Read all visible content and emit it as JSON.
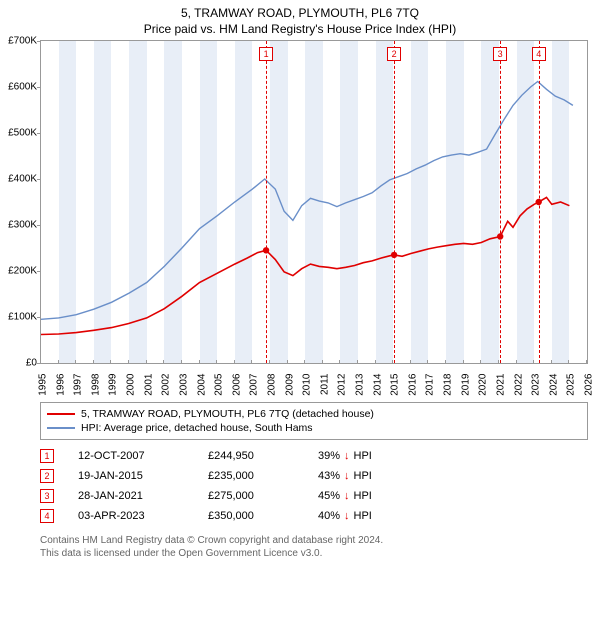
{
  "title": "5, TRAMWAY ROAD, PLYMOUTH, PL6 7TQ",
  "subtitle": "Price paid vs. HM Land Registry's House Price Index (HPI)",
  "chart": {
    "type": "line",
    "background_color": "#ffffff",
    "band_color": "#e8eef7",
    "border_color": "#999999",
    "x_range": [
      1995,
      2026
    ],
    "x_ticks": [
      1995,
      1996,
      1997,
      1998,
      1999,
      2000,
      2001,
      2002,
      2003,
      2004,
      2005,
      2006,
      2007,
      2008,
      2009,
      2010,
      2011,
      2012,
      2013,
      2014,
      2015,
      2016,
      2017,
      2018,
      2019,
      2020,
      2021,
      2022,
      2023,
      2024,
      2025,
      2026
    ],
    "x_tick_labels": [
      "1995",
      "1996",
      "1997",
      "1998",
      "1999",
      "2000",
      "2001",
      "2002",
      "2003",
      "2004",
      "2005",
      "2006",
      "2007",
      "2008",
      "2009",
      "2010",
      "2011",
      "2012",
      "2013",
      "2014",
      "2015",
      "2016",
      "2017",
      "2018",
      "2019",
      "2020",
      "2021",
      "2022",
      "2023",
      "2024",
      "2025",
      "2026"
    ],
    "y_range": [
      0,
      700000
    ],
    "y_ticks": [
      0,
      100000,
      200000,
      300000,
      400000,
      500000,
      600000,
      700000
    ],
    "y_tick_labels": [
      "£0",
      "£100K",
      "£200K",
      "£300K",
      "£400K",
      "£500K",
      "£600K",
      "£700K"
    ],
    "label_fontsize": 10,
    "series": [
      {
        "name": "price_paid",
        "color": "#e00000",
        "width": 1.6,
        "points": [
          [
            1995.0,
            62000
          ],
          [
            1996.0,
            63000
          ],
          [
            1997.0,
            66000
          ],
          [
            1998.0,
            71000
          ],
          [
            1999.0,
            77000
          ],
          [
            2000.0,
            86000
          ],
          [
            2001.0,
            98000
          ],
          [
            2002.0,
            118000
          ],
          [
            2003.0,
            145000
          ],
          [
            2004.0,
            175000
          ],
          [
            2005.0,
            195000
          ],
          [
            2006.0,
            215000
          ],
          [
            2006.7,
            228000
          ],
          [
            2007.3,
            240000
          ],
          [
            2007.78,
            244950
          ],
          [
            2008.3,
            225000
          ],
          [
            2008.8,
            198000
          ],
          [
            2009.3,
            190000
          ],
          [
            2009.8,
            205000
          ],
          [
            2010.3,
            215000
          ],
          [
            2010.8,
            210000
          ],
          [
            2011.3,
            208000
          ],
          [
            2011.8,
            205000
          ],
          [
            2012.3,
            208000
          ],
          [
            2012.8,
            212000
          ],
          [
            2013.3,
            218000
          ],
          [
            2013.8,
            222000
          ],
          [
            2014.3,
            228000
          ],
          [
            2014.8,
            233000
          ],
          [
            2015.05,
            235000
          ],
          [
            2015.5,
            232000
          ],
          [
            2016.0,
            238000
          ],
          [
            2016.5,
            243000
          ],
          [
            2017.0,
            248000
          ],
          [
            2017.5,
            252000
          ],
          [
            2018.0,
            255000
          ],
          [
            2018.5,
            258000
          ],
          [
            2019.0,
            260000
          ],
          [
            2019.5,
            258000
          ],
          [
            2020.0,
            262000
          ],
          [
            2020.5,
            270000
          ],
          [
            2021.07,
            275000
          ],
          [
            2021.5,
            308000
          ],
          [
            2021.8,
            295000
          ],
          [
            2022.2,
            320000
          ],
          [
            2022.6,
            335000
          ],
          [
            2023.0,
            345000
          ],
          [
            2023.26,
            350000
          ],
          [
            2023.7,
            360000
          ],
          [
            2024.0,
            345000
          ],
          [
            2024.5,
            350000
          ],
          [
            2025.0,
            342000
          ]
        ],
        "markers": [
          {
            "x": 2007.78,
            "y": 244950
          },
          {
            "x": 2015.05,
            "y": 235000
          },
          {
            "x": 2021.07,
            "y": 275000
          },
          {
            "x": 2023.26,
            "y": 350000
          }
        ]
      },
      {
        "name": "hpi",
        "color": "#6a8fc9",
        "width": 1.4,
        "points": [
          [
            1995.0,
            95000
          ],
          [
            1996.0,
            98000
          ],
          [
            1997.0,
            105000
          ],
          [
            1998.0,
            117000
          ],
          [
            1999.0,
            132000
          ],
          [
            2000.0,
            152000
          ],
          [
            2001.0,
            175000
          ],
          [
            2002.0,
            210000
          ],
          [
            2003.0,
            250000
          ],
          [
            2004.0,
            292000
          ],
          [
            2005.0,
            320000
          ],
          [
            2006.0,
            350000
          ],
          [
            2007.0,
            378000
          ],
          [
            2007.7,
            400000
          ],
          [
            2008.3,
            378000
          ],
          [
            2008.8,
            330000
          ],
          [
            2009.3,
            310000
          ],
          [
            2009.8,
            342000
          ],
          [
            2010.3,
            358000
          ],
          [
            2010.8,
            352000
          ],
          [
            2011.3,
            348000
          ],
          [
            2011.8,
            340000
          ],
          [
            2012.3,
            348000
          ],
          [
            2012.8,
            355000
          ],
          [
            2013.3,
            362000
          ],
          [
            2013.8,
            370000
          ],
          [
            2014.3,
            385000
          ],
          [
            2014.8,
            398000
          ],
          [
            2015.3,
            405000
          ],
          [
            2015.8,
            412000
          ],
          [
            2016.3,
            422000
          ],
          [
            2016.8,
            430000
          ],
          [
            2017.3,
            440000
          ],
          [
            2017.8,
            448000
          ],
          [
            2018.3,
            452000
          ],
          [
            2018.8,
            455000
          ],
          [
            2019.3,
            452000
          ],
          [
            2019.8,
            458000
          ],
          [
            2020.3,
            465000
          ],
          [
            2020.8,
            498000
          ],
          [
            2021.3,
            530000
          ],
          [
            2021.8,
            560000
          ],
          [
            2022.3,
            582000
          ],
          [
            2022.8,
            600000
          ],
          [
            2023.2,
            612000
          ],
          [
            2023.7,
            595000
          ],
          [
            2024.2,
            580000
          ],
          [
            2024.7,
            572000
          ],
          [
            2025.2,
            560000
          ]
        ]
      }
    ],
    "sale_markers": [
      {
        "idx": "1",
        "x": 2007.78
      },
      {
        "idx": "2",
        "x": 2015.05
      },
      {
        "idx": "3",
        "x": 2021.07
      },
      {
        "idx": "4",
        "x": 2023.26
      }
    ],
    "bands_alternate_start": 1995
  },
  "legend": {
    "items": [
      {
        "label": "5, TRAMWAY ROAD, PLYMOUTH, PL6 7TQ (detached house)",
        "color": "#e00000"
      },
      {
        "label": "HPI: Average price, detached house, South Hams",
        "color": "#6a8fc9"
      }
    ]
  },
  "sales_table": {
    "rows": [
      {
        "idx": "1",
        "date": "12-OCT-2007",
        "price": "£244,950",
        "diff": "39%",
        "arrow": "↓",
        "suffix": "HPI"
      },
      {
        "idx": "2",
        "date": "19-JAN-2015",
        "price": "£235,000",
        "diff": "43%",
        "arrow": "↓",
        "suffix": "HPI"
      },
      {
        "idx": "3",
        "date": "28-JAN-2021",
        "price": "£275,000",
        "diff": "45%",
        "arrow": "↓",
        "suffix": "HPI"
      },
      {
        "idx": "4",
        "date": "03-APR-2023",
        "price": "£350,000",
        "diff": "40%",
        "arrow": "↓",
        "suffix": "HPI"
      }
    ],
    "arrow_color": "#e00000"
  },
  "footer": {
    "line1": "Contains HM Land Registry data © Crown copyright and database right 2024.",
    "line2": "This data is licensed under the Open Government Licence v3.0."
  }
}
